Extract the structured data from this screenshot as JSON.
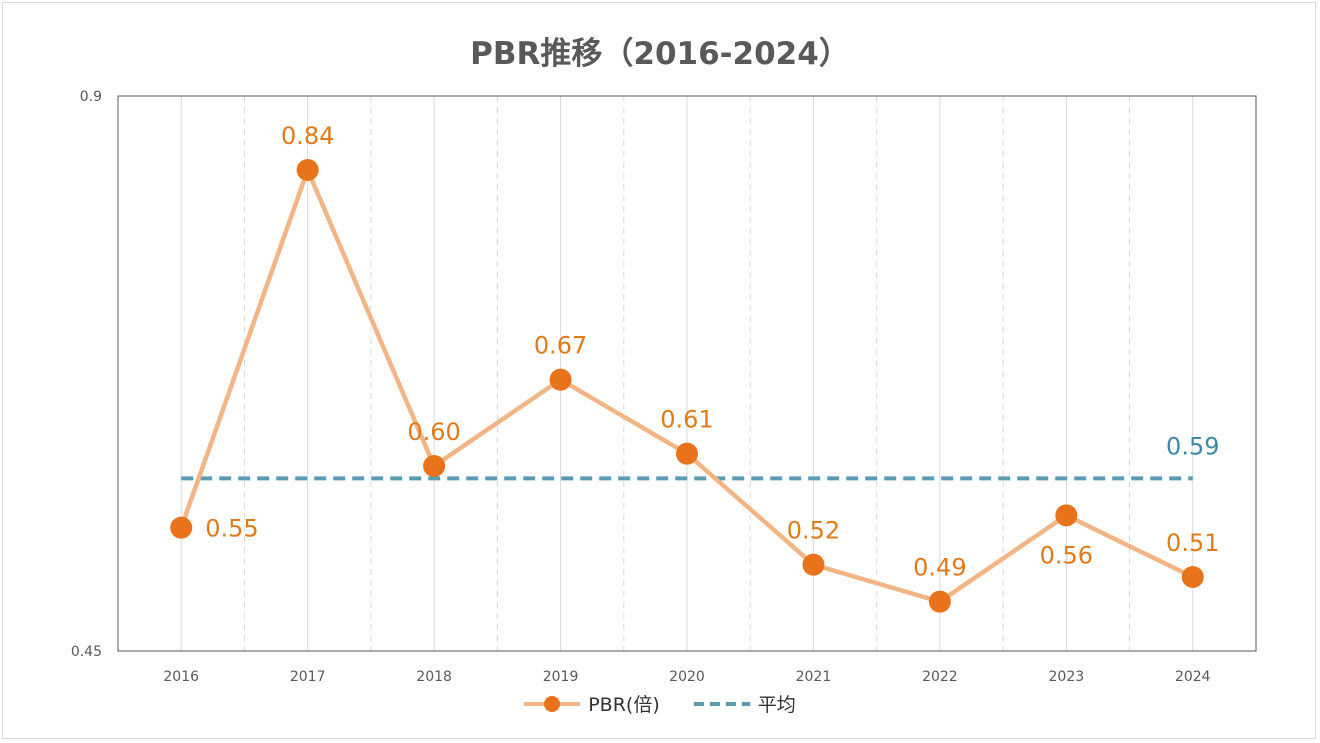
{
  "chart_data": {
    "type": "line",
    "title": "PBR推移（2016-2024）",
    "categories": [
      "2016",
      "2017",
      "2018",
      "2019",
      "2020",
      "2021",
      "2022",
      "2023",
      "2024"
    ],
    "series": [
      {
        "name": "PBR(倍)",
        "values": [
          0.55,
          0.84,
          0.6,
          0.67,
          0.61,
          0.52,
          0.49,
          0.56,
          0.51
        ],
        "labels": [
          "0.55",
          "0.84",
          "0.60",
          "0.67",
          "0.61",
          "0.52",
          "0.49",
          "0.56",
          "0.51"
        ],
        "label_positions": [
          "right",
          "above",
          "above",
          "above",
          "above",
          "above",
          "above",
          "below",
          "above"
        ],
        "color": "#E8731A",
        "line_color": "#F2B686"
      },
      {
        "name": "平均",
        "value": 0.59,
        "label": "0.59",
        "color": "#5B9CB4",
        "label_color": "#3C8AA6"
      }
    ],
    "ylim": [
      0.45,
      0.9
    ],
    "yticks": [
      "0.45",
      "0.9"
    ],
    "xlabel": "",
    "ylabel": "",
    "grid": true,
    "legend": "bottom"
  }
}
